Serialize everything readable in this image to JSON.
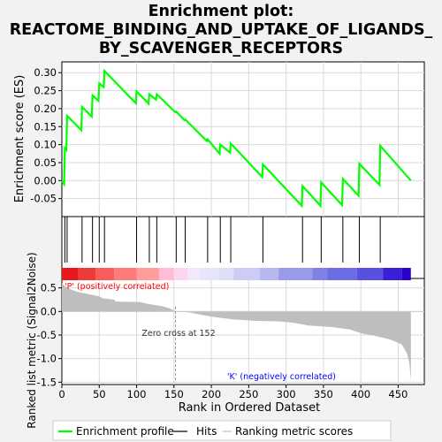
{
  "chart_data": {
    "type": "line",
    "title_lines": [
      "Enrichment plot:",
      "REACTOME_BINDING_AND_UPTAKE_OF_LIGANDS_",
      "BY_SCAVENGER_RECEPTORS"
    ],
    "ylabel_top": "Enrichment score (ES)",
    "ylabel_bottom": "Ranked list metric (Signal2Noise)",
    "xlabel": "Rank in Ordered Dataset",
    "x_range": [
      0,
      485
    ],
    "es_ylim": [
      -0.1,
      0.33
    ],
    "es_yticks": [
      -0.05,
      0.0,
      0.05,
      0.1,
      0.15,
      0.2,
      0.25,
      0.3
    ],
    "es_ytick_labels": [
      "-0.05",
      "0.00",
      "0.05",
      "0.10",
      "0.15",
      "0.20",
      "0.25",
      "0.30"
    ],
    "metric_ylim": [
      -1.55,
      0.7
    ],
    "metric_yticks": [
      -1.5,
      -1.0,
      -0.5,
      0.0,
      0.5
    ],
    "metric_ytick_labels": [
      "-1.5",
      "-1.0",
      "-0.5",
      "0.0",
      "0.5"
    ],
    "xticks": [
      0,
      50,
      100,
      150,
      200,
      250,
      300,
      350,
      400,
      450
    ],
    "xtick_labels": [
      "0",
      "50",
      "100",
      "150",
      "200",
      "250",
      "300",
      "350",
      "400",
      "450"
    ],
    "hits": [
      4,
      7,
      27,
      41,
      50,
      57,
      100,
      117,
      127,
      153,
      165,
      195,
      212,
      226,
      269,
      322,
      347,
      376,
      398,
      426
    ],
    "es_points": [
      [
        0,
        0.0
      ],
      [
        3,
        -0.01
      ],
      [
        4,
        0.09
      ],
      [
        6,
        0.085
      ],
      [
        7,
        0.18
      ],
      [
        26,
        0.14
      ],
      [
        27,
        0.205
      ],
      [
        40,
        0.178
      ],
      [
        41,
        0.237
      ],
      [
        49,
        0.222
      ],
      [
        50,
        0.27
      ],
      [
        56,
        0.26
      ],
      [
        57,
        0.305
      ],
      [
        99,
        0.215
      ],
      [
        100,
        0.248
      ],
      [
        116,
        0.214
      ],
      [
        117,
        0.24
      ],
      [
        126,
        0.225
      ],
      [
        127,
        0.24
      ],
      [
        152,
        0.19
      ],
      [
        153,
        0.192
      ],
      [
        164,
        0.168
      ],
      [
        165,
        0.17
      ],
      [
        194,
        0.11
      ],
      [
        195,
        0.115
      ],
      [
        211,
        0.075
      ],
      [
        212,
        0.1
      ],
      [
        225,
        0.078
      ],
      [
        226,
        0.103
      ],
      [
        268,
        0.01
      ],
      [
        269,
        0.045
      ],
      [
        321,
        -0.07
      ],
      [
        322,
        -0.015
      ],
      [
        346,
        -0.07
      ],
      [
        347,
        -0.005
      ],
      [
        375,
        -0.068
      ],
      [
        376,
        0.005
      ],
      [
        397,
        -0.042
      ],
      [
        398,
        0.047
      ],
      [
        425,
        -0.012
      ],
      [
        426,
        0.097
      ],
      [
        467,
        0.0
      ]
    ],
    "metric_points": [
      [
        0,
        0.6
      ],
      [
        3,
        0.55
      ],
      [
        10,
        0.48
      ],
      [
        20,
        0.42
      ],
      [
        35,
        0.37
      ],
      [
        50,
        0.32
      ],
      [
        55,
        0.28
      ],
      [
        70,
        0.25
      ],
      [
        72,
        0.21
      ],
      [
        105,
        0.2
      ],
      [
        115,
        0.16
      ],
      [
        135,
        0.11
      ],
      [
        145,
        0.06
      ],
      [
        152,
        0.0
      ],
      [
        170,
        -0.02
      ],
      [
        190,
        -0.08
      ],
      [
        205,
        -0.12
      ],
      [
        230,
        -0.17
      ],
      [
        260,
        -0.2
      ],
      [
        290,
        -0.21
      ],
      [
        310,
        -0.24
      ],
      [
        330,
        -0.3
      ],
      [
        360,
        -0.33
      ],
      [
        385,
        -0.38
      ],
      [
        400,
        -0.46
      ],
      [
        420,
        -0.52
      ],
      [
        440,
        -0.6
      ],
      [
        455,
        -0.7
      ],
      [
        462,
        -0.9
      ],
      [
        465,
        -1.1
      ],
      [
        467,
        -1.45
      ]
    ],
    "zero_cross": 152,
    "zero_cross_label": "Zero cross at 152",
    "positive_label": "'P' (positively correlated)",
    "negative_label": "'K' (negatively correlated)",
    "n_genes": 467,
    "legend": [
      {
        "label": "Enrichment profile",
        "color": "#00ff00"
      },
      {
        "label": "Hits",
        "color": "#000000"
      },
      {
        "label": "Ranking metric scores",
        "color": "#c0c0c0"
      }
    ],
    "colors": {
      "es_line": "#00ff00",
      "metric_fill": "#bebebe",
      "positive_text": "#ff0000",
      "negative_text": "#0000ff",
      "grid": "#d9d9d9"
    }
  }
}
